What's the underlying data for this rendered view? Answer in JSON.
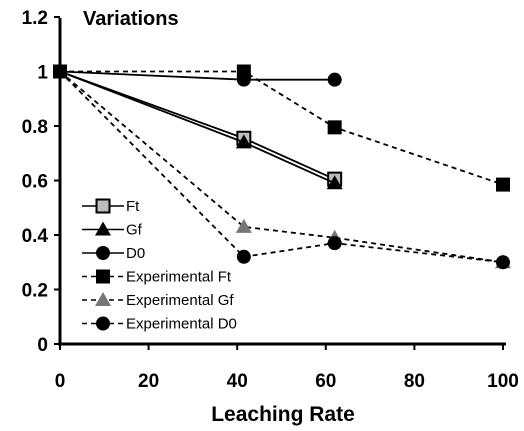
{
  "chart_data": {
    "type": "line",
    "title": "Variations",
    "xlabel": "Leaching Rate",
    "ylabel": "",
    "xlim": [
      0,
      100
    ],
    "ylim": [
      0,
      1.2
    ],
    "x_ticks": [
      "0",
      "20",
      "40",
      "60",
      "80",
      "100"
    ],
    "y_ticks": [
      "0",
      "0.2",
      "0.4",
      "0.6",
      "0.8",
      "1",
      "1.2"
    ],
    "grid": false,
    "legend_position": "bottom-left",
    "series": [
      {
        "name": "Ft",
        "marker": "square-light",
        "line": "solid",
        "color": "#000000",
        "x": [
          0,
          41.5,
          62
        ],
        "y": [
          1,
          0.755,
          0.605
        ]
      },
      {
        "name": "Gf",
        "marker": "triangle",
        "line": "solid",
        "color": "#000000",
        "x": [
          0,
          41.5,
          62
        ],
        "y": [
          1,
          0.74,
          0.59
        ]
      },
      {
        "name": "D0",
        "marker": "circle",
        "line": "solid",
        "color": "#000000",
        "x": [
          0,
          41.5,
          62
        ],
        "y": [
          1,
          0.97,
          0.97
        ]
      },
      {
        "name": "Experimental Ft",
        "marker": "square",
        "line": "dashed",
        "color": "#000000",
        "x": [
          0,
          41.5,
          62,
          100
        ],
        "y": [
          1,
          1.0,
          0.795,
          0.585
        ]
      },
      {
        "name": "Experimental Gf",
        "marker": "triangle-gray",
        "line": "dashed",
        "color": "#000000",
        "x": [
          0,
          41.5,
          62,
          100
        ],
        "y": [
          1,
          0.43,
          0.39,
          0.3
        ]
      },
      {
        "name": "Experimental D0",
        "marker": "circle",
        "line": "dashed",
        "color": "#000000",
        "x": [
          0,
          41.5,
          62,
          100
        ],
        "y": [
          1,
          0.32,
          0.37,
          0.3
        ]
      }
    ]
  }
}
